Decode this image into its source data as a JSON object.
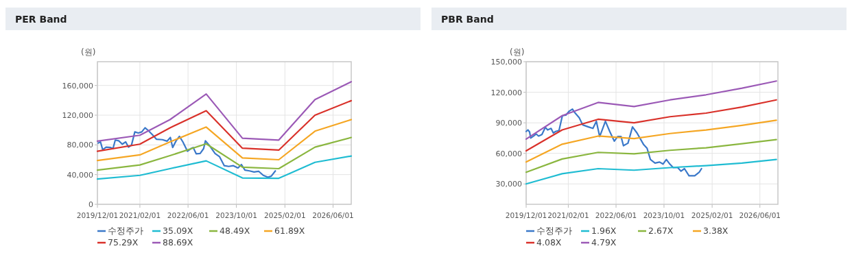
{
  "chart_data": [
    {
      "type": "line",
      "title": "PER Band",
      "ylabel": "(원)",
      "xlim": [
        "2019-12-01",
        "2026-12-01"
      ],
      "xticks": [
        {
          "value": "2019-12-01",
          "label": "2019/12/01"
        },
        {
          "value": "2021-02-01",
          "label": "2021/02/01"
        },
        {
          "value": "2022-06-01",
          "label": "2022/06/01"
        },
        {
          "value": "2023-10-01",
          "label": "2023/10/01"
        },
        {
          "value": "2025-02-01",
          "label": "2025/02/01"
        },
        {
          "value": "2026-06-01",
          "label": "2026/06/01"
        }
      ],
      "ylim": [
        0,
        192000
      ],
      "yticks": [
        0,
        {
          "value": 40000,
          "label": "40,000"
        },
        {
          "value": 80000,
          "label": "80,000"
        },
        {
          "value": 120000,
          "label": "120,000"
        },
        {
          "value": 160000,
          "label": "160,000"
        }
      ],
      "grid": true,
      "legend": "bottom",
      "series": [
        {
          "name": "수정주가",
          "color": "#3a78c9",
          "x": [
            "2019-12-08",
            "2020-01-01",
            "2020-01-23",
            "2020-02-27",
            "2020-04-13",
            "2020-05-06",
            "2020-05-29",
            "2020-07-03",
            "2020-08-07",
            "2020-09-11",
            "2020-10-09",
            "2020-11-08",
            "2020-12-12",
            "2021-01-16",
            "2021-02-20",
            "2021-03-25",
            "2021-04-29",
            "2021-06-15",
            "2021-07-19",
            "2021-09-16",
            "2021-11-01",
            "2021-12-05",
            "2021-12-28",
            "2022-02-01",
            "2022-03-06",
            "2022-04-10",
            "2022-05-26",
            "2022-06-30",
            "2022-07-23",
            "2022-08-22",
            "2022-10-01",
            "2022-11-05",
            "2022-11-23",
            "2023-01-01",
            "2023-02-28",
            "2023-04-15",
            "2023-06-01",
            "2023-07-16",
            "2023-09-01",
            "2023-10-17",
            "2023-11-21",
            "2023-12-26",
            "2024-02-10",
            "2024-03-27",
            "2024-05-12",
            "2024-06-28",
            "2024-08-13",
            "2024-09-17",
            "2024-10-28"
          ],
          "values": [
            82500,
            84000,
            73500,
            77000,
            76500,
            75000,
            86500,
            85500,
            81000,
            84000,
            77000,
            79500,
            97500,
            96000,
            97500,
            103000,
            99000,
            92500,
            87500,
            87000,
            85000,
            90000,
            76500,
            85500,
            91500,
            84000,
            71500,
            75000,
            76500,
            68000,
            68500,
            75000,
            85500,
            79500,
            68500,
            64000,
            52000,
            51000,
            52000,
            49000,
            53500,
            46000,
            45000,
            43500,
            44500,
            39000,
            36500,
            38000,
            45000
          ]
        },
        {
          "name": "35.09X",
          "color": "#1fbcd2",
          "x": [
            "2019-12-01",
            "2021-02-01",
            "2021-12-01",
            "2022-12-01",
            "2023-12-01",
            "2024-12-01",
            "2025-12-01",
            "2026-12-01"
          ],
          "values": [
            34000,
            39000,
            48000,
            58500,
            35500,
            35000,
            56500,
            65000
          ]
        },
        {
          "name": "48.49X",
          "color": "#8ab63f",
          "x": [
            "2019-12-01",
            "2021-02-01",
            "2021-12-01",
            "2022-12-01",
            "2023-12-01",
            "2024-12-01",
            "2025-12-01",
            "2026-12-01"
          ],
          "values": [
            46000,
            53000,
            65500,
            81500,
            50000,
            48000,
            77000,
            90000
          ]
        },
        {
          "name": "61.89X",
          "color": "#f5a623",
          "x": [
            "2019-12-01",
            "2021-02-01",
            "2021-12-01",
            "2022-12-01",
            "2023-12-01",
            "2024-12-01",
            "2025-12-01",
            "2026-12-01"
          ],
          "values": [
            59000,
            66500,
            84000,
            104000,
            62500,
            60000,
            98500,
            114000
          ]
        },
        {
          "name": "75.29X",
          "color": "#d9312a",
          "x": [
            "2019-12-01",
            "2021-02-01",
            "2021-12-01",
            "2022-12-01",
            "2023-12-01",
            "2024-12-01",
            "2025-12-01",
            "2026-12-01"
          ],
          "values": [
            71500,
            81000,
            103000,
            126000,
            75500,
            73000,
            120000,
            139500
          ]
        },
        {
          "name": "88.69X",
          "color": "#9b59b6",
          "x": [
            "2019-12-01",
            "2021-02-01",
            "2021-12-01",
            "2022-12-01",
            "2023-12-01",
            "2024-12-01",
            "2025-12-01",
            "2026-12-01"
          ],
          "values": [
            85000,
            93000,
            114000,
            148500,
            89000,
            86500,
            141000,
            165000
          ]
        }
      ]
    },
    {
      "type": "line",
      "title": "PBR Band",
      "ylabel": "(원)",
      "xlim": [
        "2019-12-01",
        "2026-12-01"
      ],
      "xticks": [
        {
          "value": "2019-12-01",
          "label": "2019/12/01"
        },
        {
          "value": "2021-02-01",
          "label": "2021/02/01"
        },
        {
          "value": "2022-06-01",
          "label": "2022/06/01"
        },
        {
          "value": "2023-10-01",
          "label": "2023/10/01"
        },
        {
          "value": "2025-02-01",
          "label": "2025/02/01"
        },
        {
          "value": "2026-06-01",
          "label": "2026/06/01"
        }
      ],
      "ylim": [
        10000,
        150000
      ],
      "yticks": [
        {
          "value": 30000,
          "label": "30,000"
        },
        {
          "value": 60000,
          "label": "60,000"
        },
        {
          "value": 90000,
          "label": "90,000"
        },
        {
          "value": 120000,
          "label": "120,000"
        },
        {
          "value": 150000,
          "label": "150,000"
        }
      ],
      "grid": true,
      "legend": "bottom",
      "series": [
        {
          "name": "수정주가",
          "color": "#3a78c9",
          "x": [
            "2019-12-01",
            "2019-12-19",
            "2020-01-05",
            "2020-01-16",
            "2020-02-08",
            "2020-03-13",
            "2020-04-05",
            "2020-05-09",
            "2020-06-13",
            "2020-07-06",
            "2020-08-10",
            "2020-09-02",
            "2020-09-25",
            "2020-10-30",
            "2020-12-03",
            "2021-01-07",
            "2021-02-11",
            "2021-03-15",
            "2021-04-08",
            "2021-05-23",
            "2021-06-27",
            "2021-08-24",
            "2021-10-09",
            "2021-11-13",
            "2021-12-17",
            "2022-01-09",
            "2022-02-13",
            "2022-03-29",
            "2022-05-14",
            "2022-06-18",
            "2022-07-22",
            "2022-08-15",
            "2022-09-30",
            "2022-11-15",
            "2022-12-31",
            "2023-03-09",
            "2023-04-12",
            "2023-05-16",
            "2023-07-02",
            "2023-08-17",
            "2023-09-21",
            "2023-10-25",
            "2023-11-29",
            "2024-01-03",
            "2024-02-18",
            "2024-03-22",
            "2024-04-26",
            "2024-06-11",
            "2024-08-08",
            "2024-09-23",
            "2024-10-16"
          ],
          "values": [
            81500,
            83000,
            81000,
            75000,
            76500,
            79000,
            77000,
            78500,
            85500,
            83000,
            84500,
            80000,
            81500,
            82500,
            97000,
            97500,
            101500,
            103500,
            100000,
            95000,
            88000,
            86000,
            84500,
            91500,
            76500,
            82500,
            91500,
            81500,
            72000,
            76500,
            76500,
            67500,
            70000,
            86000,
            80000,
            68500,
            65000,
            54000,
            50500,
            51500,
            49500,
            54000,
            49500,
            46000,
            46000,
            42500,
            45000,
            38000,
            38000,
            41500,
            45000
          ]
        },
        {
          "name": "1.96X",
          "color": "#1fbcd2",
          "x": [
            "2019-12-01",
            "2020-12-01",
            "2021-12-01",
            "2022-12-01",
            "2023-12-01",
            "2024-12-01",
            "2025-12-01",
            "2026-11-15"
          ],
          "values": [
            30000,
            40000,
            45000,
            43500,
            46000,
            48000,
            50500,
            54000
          ]
        },
        {
          "name": "2.67X",
          "color": "#8ab63f",
          "x": [
            "2019-12-01",
            "2020-12-01",
            "2021-12-01",
            "2022-12-01",
            "2023-12-01",
            "2024-12-01",
            "2025-12-01",
            "2026-11-15"
          ],
          "values": [
            41500,
            54500,
            61000,
            59500,
            63000,
            65500,
            69500,
            73500
          ]
        },
        {
          "name": "3.38X",
          "color": "#f5a623",
          "x": [
            "2019-12-01",
            "2020-12-01",
            "2021-12-01",
            "2022-12-01",
            "2023-12-01",
            "2024-12-01",
            "2025-12-01",
            "2026-11-15"
          ],
          "values": [
            51500,
            69000,
            77000,
            74500,
            79500,
            83000,
            87500,
            92500
          ]
        },
        {
          "name": "4.08X",
          "color": "#d9312a",
          "x": [
            "2019-12-01",
            "2020-12-01",
            "2021-12-01",
            "2022-12-01",
            "2023-12-01",
            "2024-12-01",
            "2025-12-01",
            "2026-11-15"
          ],
          "values": [
            62500,
            83000,
            93500,
            90000,
            96000,
            99500,
            105500,
            112500
          ]
        },
        {
          "name": "4.79X",
          "color": "#9b59b6",
          "x": [
            "2019-12-01",
            "2020-12-01",
            "2021-12-01",
            "2022-12-01",
            "2023-12-01",
            "2024-12-01",
            "2025-12-01",
            "2026-11-15"
          ],
          "values": [
            74000,
            97000,
            110000,
            106000,
            112500,
            117500,
            124000,
            131000
          ]
        }
      ]
    }
  ]
}
